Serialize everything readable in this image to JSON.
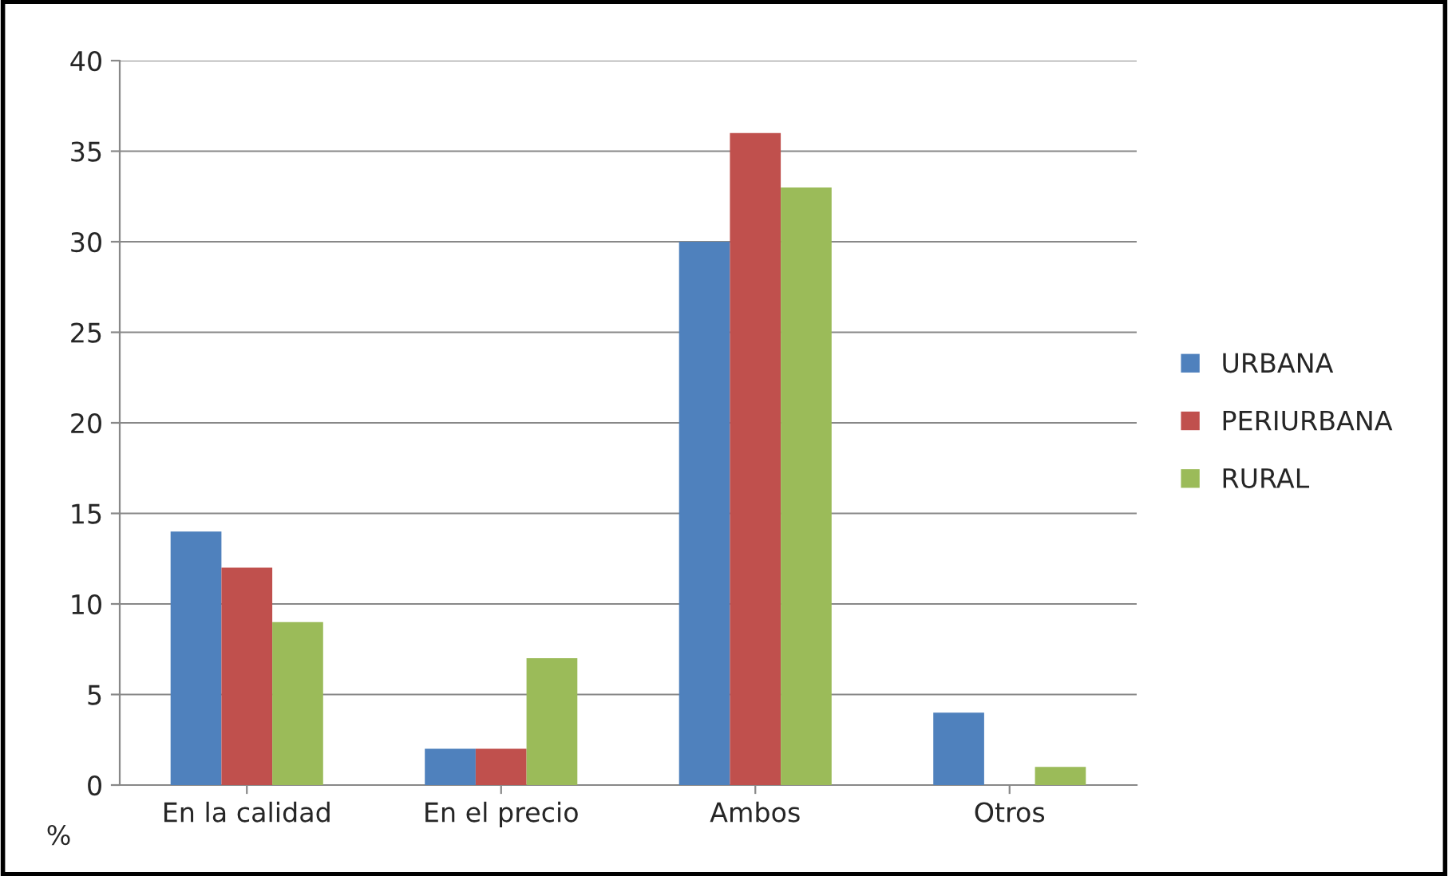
{
  "chart_data": {
    "type": "bar",
    "ylabel": "%",
    "categories": [
      "En la calidad",
      "En el precio",
      "Ambos",
      "Otros"
    ],
    "series": [
      {
        "name": "URBANA",
        "color": "#4f81bd",
        "values": [
          14,
          2,
          30,
          4
        ]
      },
      {
        "name": "PERIURBANA",
        "color": "#c0504d",
        "values": [
          12,
          2,
          36,
          0
        ]
      },
      {
        "name": "RURAL",
        "color": "#9bbb59",
        "values": [
          9,
          7,
          33,
          1
        ]
      }
    ],
    "ylim": [
      0,
      40
    ],
    "yticks": [
      0,
      5,
      10,
      15,
      20,
      25,
      30,
      35,
      40
    ],
    "grid": "y",
    "legend": "right"
  }
}
